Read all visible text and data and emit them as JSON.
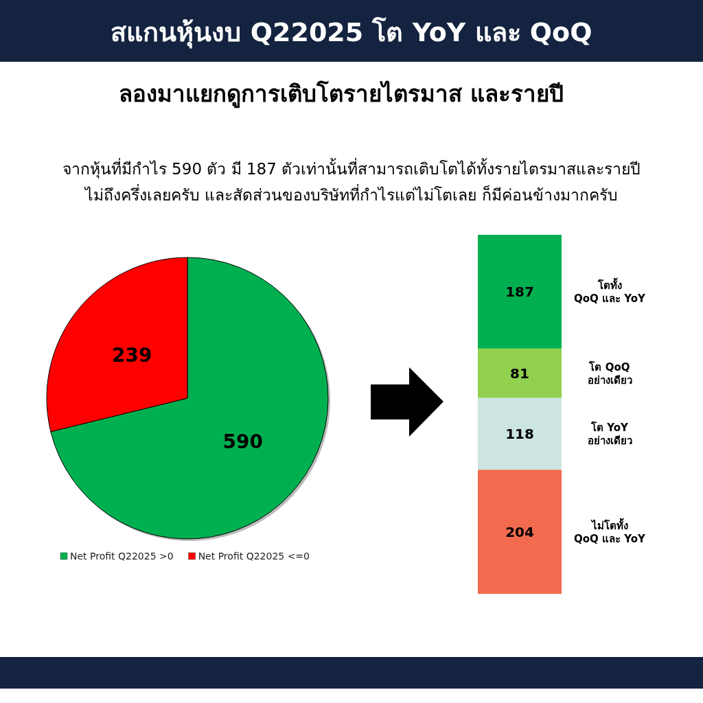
{
  "chart_data": [
    {
      "type": "pie",
      "title": "สแกนหุ้นงบ Q22025 โต YoY และ QoQ",
      "subtitle": "ลองมาแยกดูการเติบโตรายไตรมาส และรายปี",
      "annotations": [
        "จากหุ้นที่มีกำไร 590 ตัว มี 187 ตัวเท่านั้นที่สามารถเติบโตได้ทั้งรายไตรมาสและรายปี",
        "ไม่ถึงครึ่งเลยครับ และสัดส่วนของบริษัทที่กำไรแต่ไม่โตเลย ก็มีค่อนข้างมากครับ"
      ],
      "categories": [
        "Net Profit Q22025 >0",
        "Net Profit Q22025 <=0"
      ],
      "values": [
        590,
        239
      ],
      "colors": [
        "#00b050",
        "#ff0000"
      ],
      "data_labels": true,
      "legend": "bottom"
    },
    {
      "type": "bar",
      "stacked": true,
      "data_labels": true,
      "categories": [
        null
      ],
      "series": [
        {
          "name": "ไม่โตทั้ง\nQoQ และ YoY",
          "color": "#f26b4f",
          "values": [
            204
          ]
        },
        {
          "name": "โต YoY\nอย่างเดียว",
          "color": "#cce5e0",
          "values": [
            118
          ]
        },
        {
          "name": "โต QoQ\nอย่างเดียว",
          "color": "#92d050",
          "values": [
            81
          ]
        },
        {
          "name": "โตทั้ง\nQoQ และ YoY",
          "color": "#00b050",
          "values": [
            187
          ]
        }
      ]
    }
  ]
}
